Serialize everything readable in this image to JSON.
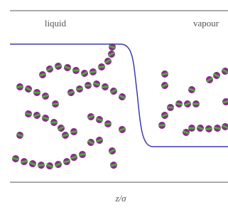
{
  "labels": {
    "liquid": "liquid",
    "vapour": "vapour",
    "axis": "z/σ"
  }
}
